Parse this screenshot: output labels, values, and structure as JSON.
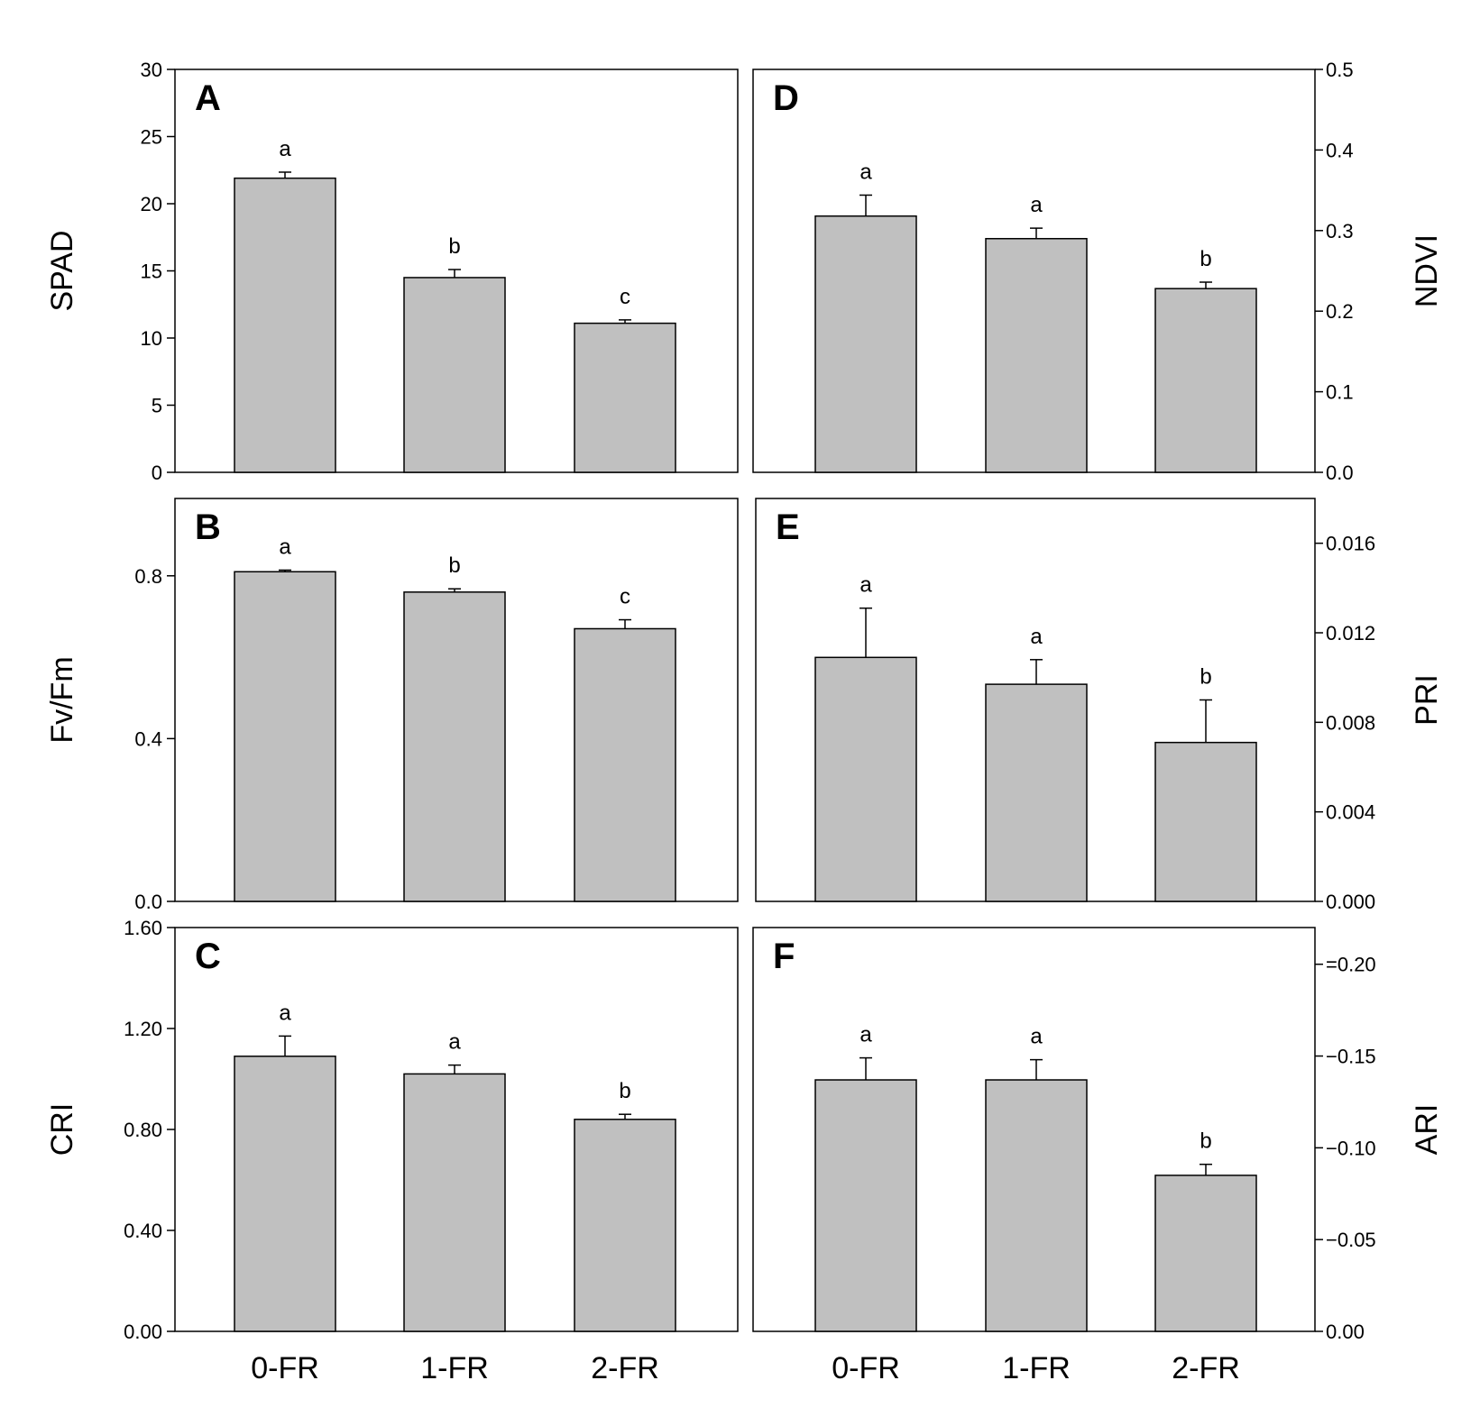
{
  "chart_data": [
    {
      "type": "bar",
      "panel": "A",
      "categories": [
        "0-FR",
        "1-FR",
        "2-FR"
      ],
      "values": [
        21.9,
        14.5,
        11.1
      ],
      "errors": [
        0.45,
        0.6,
        0.25
      ],
      "significance": [
        "a",
        "b",
        "c"
      ],
      "ylabel": "SPAD",
      "ylim": [
        0,
        30
      ],
      "ticks": [
        0,
        5,
        10,
        15,
        20,
        25,
        30
      ],
      "tick_labels": [
        "0",
        "5",
        "10",
        "15",
        "20",
        "25",
        "30"
      ],
      "axis_side": "left"
    },
    {
      "type": "bar",
      "panel": "B",
      "categories": [
        "0-FR",
        "1-FR",
        "2-FR"
      ],
      "values": [
        0.81,
        0.76,
        0.67
      ],
      "errors": [
        0.004,
        0.008,
        0.022
      ],
      "significance": [
        "a",
        "b",
        "c"
      ],
      "ylabel": "Fv/Fm",
      "ylim": [
        0,
        0.99
      ],
      "ticks": [
        0,
        0.4,
        0.8
      ],
      "tick_labels": [
        "0.0",
        "0.4",
        "0.8"
      ],
      "axis_side": "left"
    },
    {
      "type": "bar",
      "panel": "C",
      "categories": [
        "0-FR",
        "1-FR",
        "2-FR"
      ],
      "values": [
        1.09,
        1.02,
        0.84
      ],
      "errors": [
        0.08,
        0.035,
        0.02
      ],
      "significance": [
        "a",
        "a",
        "b"
      ],
      "ylabel": "CRI",
      "ylim": [
        0,
        1.6
      ],
      "ticks": [
        0,
        0.4,
        0.8,
        1.2,
        1.6
      ],
      "tick_labels": [
        "0.00",
        "0.40",
        "0.80",
        "1.20",
        "1.60"
      ],
      "axis_side": "left"
    },
    {
      "type": "bar",
      "panel": "D",
      "categories": [
        "0-FR",
        "1-FR",
        "2-FR"
      ],
      "values": [
        0.318,
        0.29,
        0.228
      ],
      "errors": [
        0.026,
        0.013,
        0.008
      ],
      "significance": [
        "a",
        "a",
        "b"
      ],
      "ylabel": "NDVI",
      "ylim": [
        0,
        0.5
      ],
      "ticks": [
        0,
        0.1,
        0.2,
        0.3,
        0.4,
        0.5
      ],
      "tick_labels": [
        "0.0",
        "0.1",
        "0.2",
        "0.3",
        "0.4",
        "0.5"
      ],
      "axis_side": "right"
    },
    {
      "type": "bar",
      "panel": "E",
      "categories": [
        "0-FR",
        "1-FR",
        "2-FR"
      ],
      "values": [
        0.0109,
        0.0097,
        0.0071
      ],
      "errors": [
        0.0022,
        0.0011,
        0.0019
      ],
      "significance": [
        "a",
        "a",
        "b"
      ],
      "ylabel": "PRI",
      "ylim": [
        0,
        0.018
      ],
      "ticks": [
        0,
        0.004,
        0.008,
        0.012,
        0.016
      ],
      "tick_labels": [
        "0.000",
        "0.004",
        "0.008",
        "0.012",
        "0.016"
      ],
      "axis_side": "right"
    },
    {
      "type": "bar",
      "panel": "F",
      "categories": [
        "0-FR",
        "1-FR",
        "2-FR"
      ],
      "values": [
        0.137,
        0.137,
        0.085
      ],
      "errors": [
        0.012,
        0.011,
        0.006
      ],
      "significance": [
        "a",
        "a",
        "b"
      ],
      "ylabel": "ARI",
      "ylim": [
        0,
        0.22
      ],
      "ticks": [
        0,
        0.05,
        0.1,
        0.15,
        0.2
      ],
      "tick_labels": [
        "0.00",
        "−0.05",
        "−0.10",
        "−0.15",
        "=0.20"
      ],
      "axis_side": "right"
    }
  ]
}
